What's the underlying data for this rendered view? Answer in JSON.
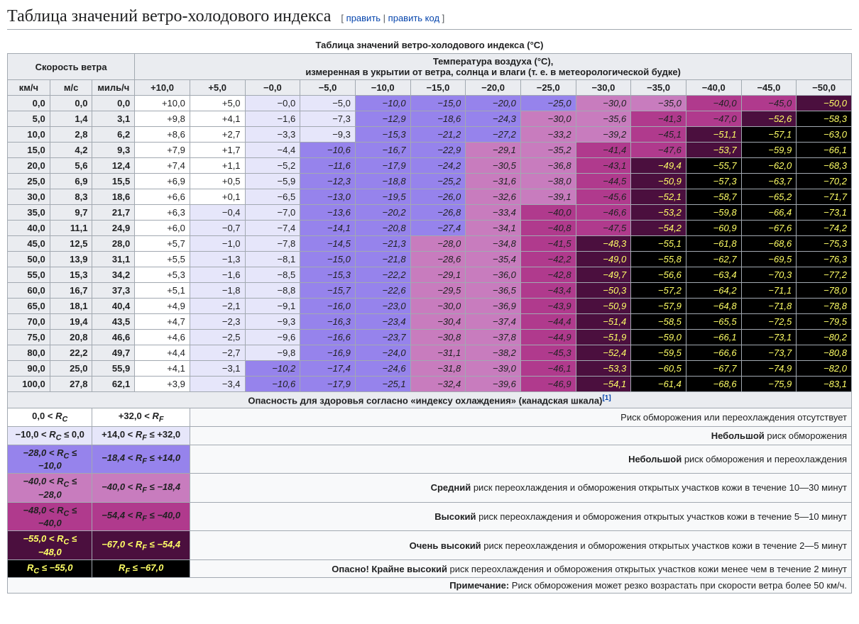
{
  "heading": "Таблица значений ветро-холодового индекса",
  "edit_label": "править",
  "edit_source_label": "править код",
  "caption": "Таблица значений ветро-холодового индекса (°C)",
  "wind_speed_header": "Скорость ветра",
  "air_temp_header_line1": "Температура воздуха (°C),",
  "air_temp_header_line2": "измеренная в укрытии от ветра, солнца и влаги (т. е. в метеорологической будке)",
  "unit_headers": [
    "км/ч",
    "м/с",
    "миль/ч"
  ],
  "temp_headers": [
    "+10,0",
    "+5,0",
    "−0,0",
    "−5,0",
    "−10,0",
    "−15,0",
    "−20,0",
    "−25,0",
    "−30,0",
    "−35,0",
    "−40,0",
    "−45,0",
    "−50,0"
  ],
  "colors": {
    "level0": "#ffffff",
    "level1": "#e6e6fa",
    "level2": "#9683ec",
    "level3": "#c87cbe",
    "level4": "#b03a8d",
    "level5": "#4b0f3e",
    "level6": "#000000"
  },
  "rows": [
    {
      "wind": [
        "0,0",
        "0,0",
        "0,0"
      ],
      "cells": [
        [
          "+10,0",
          0
        ],
        [
          "+5,0",
          0
        ],
        [
          "−0,0",
          1
        ],
        [
          "−5,0",
          1
        ],
        [
          "−10,0",
          2
        ],
        [
          "−15,0",
          2
        ],
        [
          "−20,0",
          2
        ],
        [
          "−25,0",
          2
        ],
        [
          "−30,0",
          3
        ],
        [
          "−35,0",
          3
        ],
        [
          "−40,0",
          4
        ],
        [
          "−45,0",
          4
        ],
        [
          "−50,0",
          5
        ]
      ]
    },
    {
      "wind": [
        "5,0",
        "1,4",
        "3,1"
      ],
      "cells": [
        [
          "+9,8",
          0
        ],
        [
          "+4,1",
          0
        ],
        [
          "−1,6",
          1
        ],
        [
          "−7,3",
          1
        ],
        [
          "−12,9",
          2
        ],
        [
          "−18,6",
          2
        ],
        [
          "−24,3",
          2
        ],
        [
          "−30,0",
          3
        ],
        [
          "−35,6",
          3
        ],
        [
          "−41,3",
          4
        ],
        [
          "−47,0",
          4
        ],
        [
          "−52,6",
          5
        ],
        [
          "−58,3",
          6
        ]
      ]
    },
    {
      "wind": [
        "10,0",
        "2,8",
        "6,2"
      ],
      "cells": [
        [
          "+8,6",
          0
        ],
        [
          "+2,7",
          0
        ],
        [
          "−3,3",
          1
        ],
        [
          "−9,3",
          1
        ],
        [
          "−15,3",
          2
        ],
        [
          "−21,2",
          2
        ],
        [
          "−27,2",
          2
        ],
        [
          "−33,2",
          3
        ],
        [
          "−39,2",
          3
        ],
        [
          "−45,1",
          4
        ],
        [
          "−51,1",
          5
        ],
        [
          "−57,1",
          6
        ],
        [
          "−63,0",
          6
        ]
      ]
    },
    {
      "wind": [
        "15,0",
        "4,2",
        "9,3"
      ],
      "cells": [
        [
          "+7,9",
          0
        ],
        [
          "+1,7",
          0
        ],
        [
          "−4,4",
          1
        ],
        [
          "−10,6",
          2
        ],
        [
          "−16,7",
          2
        ],
        [
          "−22,9",
          2
        ],
        [
          "−29,1",
          3
        ],
        [
          "−35,2",
          3
        ],
        [
          "−41,4",
          4
        ],
        [
          "−47,6",
          4
        ],
        [
          "−53,7",
          5
        ],
        [
          "−59,9",
          6
        ],
        [
          "−66,1",
          6
        ]
      ]
    },
    {
      "wind": [
        "20,0",
        "5,6",
        "12,4"
      ],
      "cells": [
        [
          "+7,4",
          0
        ],
        [
          "+1,1",
          0
        ],
        [
          "−5,2",
          1
        ],
        [
          "−11,6",
          2
        ],
        [
          "−17,9",
          2
        ],
        [
          "−24,2",
          2
        ],
        [
          "−30,5",
          3
        ],
        [
          "−36,8",
          3
        ],
        [
          "−43,1",
          4
        ],
        [
          "−49,4",
          5
        ],
        [
          "−55,7",
          6
        ],
        [
          "−62,0",
          6
        ],
        [
          "−68,3",
          6
        ]
      ]
    },
    {
      "wind": [
        "25,0",
        "6,9",
        "15,5"
      ],
      "cells": [
        [
          "+6,9",
          0
        ],
        [
          "+0,5",
          0
        ],
        [
          "−5,9",
          1
        ],
        [
          "−12,3",
          2
        ],
        [
          "−18,8",
          2
        ],
        [
          "−25,2",
          2
        ],
        [
          "−31,6",
          3
        ],
        [
          "−38,0",
          3
        ],
        [
          "−44,5",
          4
        ],
        [
          "−50,9",
          5
        ],
        [
          "−57,3",
          6
        ],
        [
          "−63,7",
          6
        ],
        [
          "−70,2",
          6
        ]
      ]
    },
    {
      "wind": [
        "30,0",
        "8,3",
        "18,6"
      ],
      "cells": [
        [
          "+6,6",
          0
        ],
        [
          "+0,1",
          0
        ],
        [
          "−6,5",
          1
        ],
        [
          "−13,0",
          2
        ],
        [
          "−19,5",
          2
        ],
        [
          "−26,0",
          2
        ],
        [
          "−32,6",
          3
        ],
        [
          "−39,1",
          3
        ],
        [
          "−45,6",
          4
        ],
        [
          "−52,1",
          5
        ],
        [
          "−58,7",
          6
        ],
        [
          "−65,2",
          6
        ],
        [
          "−71,7",
          6
        ]
      ]
    },
    {
      "wind": [
        "35,0",
        "9,7",
        "21,7"
      ],
      "cells": [
        [
          "+6,3",
          0
        ],
        [
          "−0,4",
          1
        ],
        [
          "−7,0",
          1
        ],
        [
          "−13,6",
          2
        ],
        [
          "−20,2",
          2
        ],
        [
          "−26,8",
          2
        ],
        [
          "−33,4",
          3
        ],
        [
          "−40,0",
          4
        ],
        [
          "−46,6",
          4
        ],
        [
          "−53,2",
          5
        ],
        [
          "−59,8",
          6
        ],
        [
          "−66,4",
          6
        ],
        [
          "−73,1",
          6
        ]
      ]
    },
    {
      "wind": [
        "40,0",
        "11,1",
        "24,9"
      ],
      "cells": [
        [
          "+6,0",
          0
        ],
        [
          "−0,7",
          1
        ],
        [
          "−7,4",
          1
        ],
        [
          "−14,1",
          2
        ],
        [
          "−20,8",
          2
        ],
        [
          "−27,4",
          2
        ],
        [
          "−34,1",
          3
        ],
        [
          "−40,8",
          4
        ],
        [
          "−47,5",
          4
        ],
        [
          "−54,2",
          5
        ],
        [
          "−60,9",
          6
        ],
        [
          "−67,6",
          6
        ],
        [
          "−74,2",
          6
        ]
      ]
    },
    {
      "wind": [
        "45,0",
        "12,5",
        "28,0"
      ],
      "cells": [
        [
          "+5,7",
          0
        ],
        [
          "−1,0",
          1
        ],
        [
          "−7,8",
          1
        ],
        [
          "−14,5",
          2
        ],
        [
          "−21,3",
          2
        ],
        [
          "−28,0",
          3
        ],
        [
          "−34,8",
          3
        ],
        [
          "−41,5",
          4
        ],
        [
          "−48,3",
          5
        ],
        [
          "−55,1",
          6
        ],
        [
          "−61,8",
          6
        ],
        [
          "−68,6",
          6
        ],
        [
          "−75,3",
          6
        ]
      ]
    },
    {
      "wind": [
        "50,0",
        "13,9",
        "31,1"
      ],
      "cells": [
        [
          "+5,5",
          0
        ],
        [
          "−1,3",
          1
        ],
        [
          "−8,1",
          1
        ],
        [
          "−15,0",
          2
        ],
        [
          "−21,8",
          2
        ],
        [
          "−28,6",
          3
        ],
        [
          "−35,4",
          3
        ],
        [
          "−42,2",
          4
        ],
        [
          "−49,0",
          5
        ],
        [
          "−55,8",
          6
        ],
        [
          "−62,7",
          6
        ],
        [
          "−69,5",
          6
        ],
        [
          "−76,3",
          6
        ]
      ]
    },
    {
      "wind": [
        "55,0",
        "15,3",
        "34,2"
      ],
      "cells": [
        [
          "+5,3",
          0
        ],
        [
          "−1,6",
          1
        ],
        [
          "−8,5",
          1
        ],
        [
          "−15,3",
          2
        ],
        [
          "−22,2",
          2
        ],
        [
          "−29,1",
          3
        ],
        [
          "−36,0",
          3
        ],
        [
          "−42,8",
          4
        ],
        [
          "−49,7",
          5
        ],
        [
          "−56,6",
          6
        ],
        [
          "−63,4",
          6
        ],
        [
          "−70,3",
          6
        ],
        [
          "−77,2",
          6
        ]
      ]
    },
    {
      "wind": [
        "60,0",
        "16,7",
        "37,3"
      ],
      "cells": [
        [
          "+5,1",
          0
        ],
        [
          "−1,8",
          1
        ],
        [
          "−8,8",
          1
        ],
        [
          "−15,7",
          2
        ],
        [
          "−22,6",
          2
        ],
        [
          "−29,5",
          3
        ],
        [
          "−36,5",
          3
        ],
        [
          "−43,4",
          4
        ],
        [
          "−50,3",
          5
        ],
        [
          "−57,2",
          6
        ],
        [
          "−64,2",
          6
        ],
        [
          "−71,1",
          6
        ],
        [
          "−78,0",
          6
        ]
      ]
    },
    {
      "wind": [
        "65,0",
        "18,1",
        "40,4"
      ],
      "cells": [
        [
          "+4,9",
          0
        ],
        [
          "−2,1",
          1
        ],
        [
          "−9,1",
          1
        ],
        [
          "−16,0",
          2
        ],
        [
          "−23,0",
          2
        ],
        [
          "−30,0",
          3
        ],
        [
          "−36,9",
          3
        ],
        [
          "−43,9",
          4
        ],
        [
          "−50,9",
          5
        ],
        [
          "−57,9",
          6
        ],
        [
          "−64,8",
          6
        ],
        [
          "−71,8",
          6
        ],
        [
          "−78,8",
          6
        ]
      ]
    },
    {
      "wind": [
        "70,0",
        "19,4",
        "43,5"
      ],
      "cells": [
        [
          "+4,7",
          0
        ],
        [
          "−2,3",
          1
        ],
        [
          "−9,3",
          1
        ],
        [
          "−16,3",
          2
        ],
        [
          "−23,4",
          2
        ],
        [
          "−30,4",
          3
        ],
        [
          "−37,4",
          3
        ],
        [
          "−44,4",
          4
        ],
        [
          "−51,4",
          5
        ],
        [
          "−58,5",
          6
        ],
        [
          "−65,5",
          6
        ],
        [
          "−72,5",
          6
        ],
        [
          "−79,5",
          6
        ]
      ]
    },
    {
      "wind": [
        "75,0",
        "20,8",
        "46,6"
      ],
      "cells": [
        [
          "+4,6",
          0
        ],
        [
          "−2,5",
          1
        ],
        [
          "−9,6",
          1
        ],
        [
          "−16,6",
          2
        ],
        [
          "−23,7",
          2
        ],
        [
          "−30,8",
          3
        ],
        [
          "−37,8",
          3
        ],
        [
          "−44,9",
          4
        ],
        [
          "−51,9",
          5
        ],
        [
          "−59,0",
          6
        ],
        [
          "−66,1",
          6
        ],
        [
          "−73,1",
          6
        ],
        [
          "−80,2",
          6
        ]
      ]
    },
    {
      "wind": [
        "80,0",
        "22,2",
        "49,7"
      ],
      "cells": [
        [
          "+4,4",
          0
        ],
        [
          "−2,7",
          1
        ],
        [
          "−9,8",
          1
        ],
        [
          "−16,9",
          2
        ],
        [
          "−24,0",
          2
        ],
        [
          "−31,1",
          3
        ],
        [
          "−38,2",
          3
        ],
        [
          "−45,3",
          4
        ],
        [
          "−52,4",
          5
        ],
        [
          "−59,5",
          6
        ],
        [
          "−66,6",
          6
        ],
        [
          "−73,7",
          6
        ],
        [
          "−80,8",
          6
        ]
      ]
    },
    {
      "wind": [
        "90,0",
        "25,0",
        "55,9"
      ],
      "cells": [
        [
          "+4,1",
          0
        ],
        [
          "−3,1",
          1
        ],
        [
          "−10,2",
          2
        ],
        [
          "−17,4",
          2
        ],
        [
          "−24,6",
          2
        ],
        [
          "−31,8",
          3
        ],
        [
          "−39,0",
          3
        ],
        [
          "−46,1",
          4
        ],
        [
          "−53,3",
          5
        ],
        [
          "−60,5",
          6
        ],
        [
          "−67,7",
          6
        ],
        [
          "−74,9",
          6
        ],
        [
          "−82,0",
          6
        ]
      ]
    },
    {
      "wind": [
        "100,0",
        "27,8",
        "62,1"
      ],
      "cells": [
        [
          "+3,9",
          0
        ],
        [
          "−3,4",
          1
        ],
        [
          "−10,6",
          2
        ],
        [
          "−17,9",
          2
        ],
        [
          "−25,1",
          2
        ],
        [
          "−32,4",
          3
        ],
        [
          "−39,6",
          3
        ],
        [
          "−46,9",
          4
        ],
        [
          "−54,1",
          5
        ],
        [
          "−61,4",
          6
        ],
        [
          "−68,6",
          6
        ],
        [
          "−75,9",
          6
        ],
        [
          "−83,1",
          6
        ]
      ]
    }
  ],
  "danger_header": "Опасность для здоровья согласно «индексу охлаждения» (канадская шкала)",
  "danger_ref": "[1]",
  "risk_rows": [
    {
      "rc_html": "0,0 &lt; <i>R<sub>C</sub></i>",
      "rf_html": "+32,0 &lt; <i>R<sub>F</sub></i>",
      "level": 0,
      "desc": "Риск обморожения или переохлаждения отсутствует"
    },
    {
      "rc_html": "−10,0 &lt; <i>R<sub>C</sub></i> ≤ 0,0",
      "rf_html": "+14,0 &lt; <i>R<sub>F</sub></i> ≤ +32,0",
      "level": 1,
      "desc": "<b>Небольшой</b> риск обморожения"
    },
    {
      "rc_html": "−28,0 &lt; <i>R<sub>C</sub></i> ≤ −10,0",
      "rf_html": "−18,4 &lt; <i>R<sub>F</sub></i> ≤ +14,0",
      "level": 2,
      "desc": "<b>Небольшой</b> риск обморожения и переохлаждения"
    },
    {
      "rc_html": "−40,0 &lt; <i>R<sub>C</sub></i> ≤ −28,0",
      "rf_html": "−40,0 &lt; <i>R<sub>F</sub></i> ≤ −18,4",
      "level": 3,
      "desc": "<b>Средний</b> риск переохлаждения и обморожения открытых участков кожи в течение 10—30 минут"
    },
    {
      "rc_html": "−48,0 &lt; <i>R<sub>C</sub></i> ≤ −40,0",
      "rf_html": "−54,4 &lt; <i>R<sub>F</sub></i> ≤ −40,0",
      "level": 4,
      "desc": "<b>Высокий</b> риск переохлаждения и обморожения открытых участков кожи в течение 5—10 минут"
    },
    {
      "rc_html": "−55,0 &lt; <i>R<sub>C</sub></i> ≤ −48,0",
      "rf_html": "−67,0 &lt; <i>R<sub>F</sub></i> ≤ −54,4",
      "level": 5,
      "desc": "<b>Очень высокий</b> риск переохлаждения и обморожения открытых участков кожи в течение 2—5 минут"
    },
    {
      "rc_html": "<i>R<sub>C</sub></i> ≤ −55,0",
      "rf_html": "<i>R<sub>F</sub></i> ≤ −67,0",
      "level": 6,
      "desc": "<b>Опасно! Крайне высокий</b> риск переохлаждения и обморожения открытых участков кожи менее чем в течение 2 минут"
    }
  ],
  "note_label": "Примечание:",
  "note_text": "Риск обморожения может резко возрастать при скорости ветра более 50 км/ч."
}
